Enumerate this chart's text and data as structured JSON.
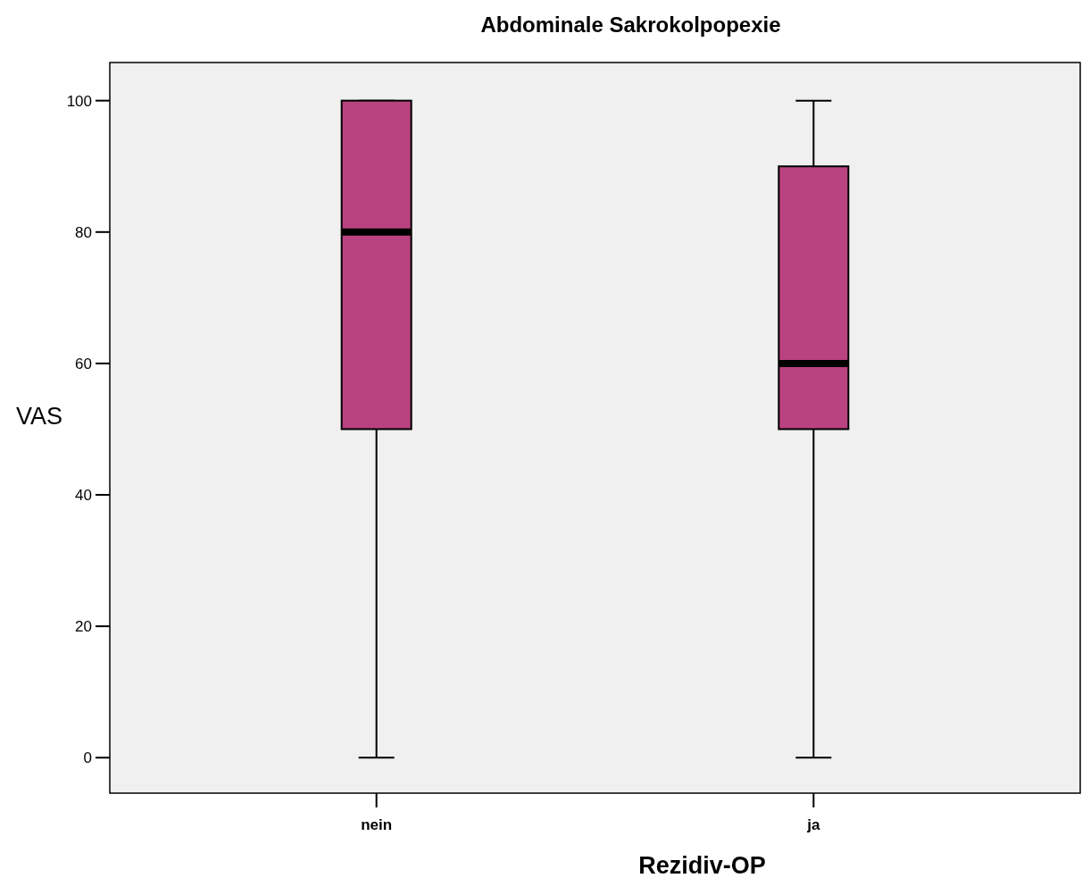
{
  "chart_data": {
    "type": "box",
    "title": "Abdominale Sakrokolpopexie",
    "xlabel": "Rezidiv-OP",
    "ylabel": "VAS",
    "categories": [
      "nein",
      "ja"
    ],
    "color": "#b94280",
    "boxes": [
      {
        "low": 0,
        "q1": 50,
        "median": 80,
        "q3": 100,
        "high": 100
      },
      {
        "low": 0,
        "q1": 50,
        "median": 60,
        "q3": 90,
        "high": 100
      }
    ],
    "ylim": [
      -5.4,
      105.8
    ],
    "yticks": [
      0,
      20,
      40,
      60,
      80,
      100
    ],
    "grid": false
  }
}
